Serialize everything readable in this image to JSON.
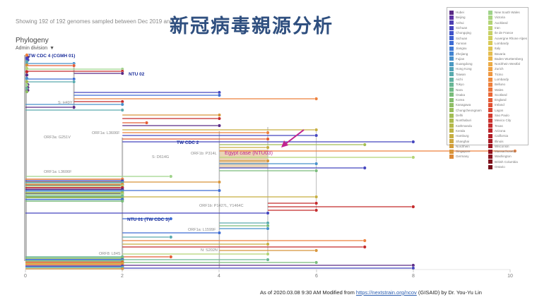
{
  "header": {
    "subtitle": "Showing 192 of 192 genomes sampled between Dec 2019 and",
    "title": "新冠病毒親源分析",
    "section": "Phylogeny",
    "dropdown": "Admin division"
  },
  "axis": {
    "ticks": [
      "0",
      "2",
      "4",
      "6",
      "8",
      "10"
    ],
    "max": 10
  },
  "labels": {
    "tw_cdc4": "TW CDC 4 (CGMH 01)",
    "ntu02": "NTU 02",
    "s_h49y": "S: H49Y",
    "orf1a_l3606f_a": "ORF1a: L3606F",
    "orf3a_g251v": "ORF3a: G251V",
    "tw_cdc2": "TW CDC 2",
    "orf1b_p314l": "ORF1b: P314L",
    "s_d614g": "S: D614G",
    "egypt": "Egypt case (NTU03)",
    "orf1a_l3606f_b": "ORF1a: L3606F",
    "orf1b_p1427l": "ORF1b: P1427L, Y1464C",
    "ntu01": "NTU 01 (TW CDC 3)",
    "orf1a_l1599f": "ORF1a: L1599F",
    "n_s202n": "N: S202N",
    "orf8_l84s": "ORF8: L84S"
  },
  "legend": {
    "col1": [
      {
        "label": "Hubei",
        "color": "#5b2a86"
      },
      {
        "label": "Beijing",
        "color": "#5e34a4"
      },
      {
        "label": "Anhui",
        "color": "#4e3fb2"
      },
      {
        "label": "Sichuan",
        "color": "#4546bf"
      },
      {
        "label": "Chongqing",
        "color": "#3f52c9"
      },
      {
        "label": "Sichuan",
        "color": "#3d5fd0"
      },
      {
        "label": "Yunnan",
        "color": "#3d6cd4"
      },
      {
        "label": "Jiangsu",
        "color": "#3f79d4"
      },
      {
        "label": "Zhejiang",
        "color": "#4385d1"
      },
      {
        "label": "Fujian",
        "color": "#4890cb"
      },
      {
        "label": "Guangdong",
        "color": "#4d9ac3"
      },
      {
        "label": "Hong Kong",
        "color": "#53a3b9"
      },
      {
        "label": "Taiwan",
        "color": "#5aabae"
      },
      {
        "label": "Aichi",
        "color": "#61b1a2"
      },
      {
        "label": "Tokyo",
        "color": "#69b695"
      },
      {
        "label": "Nara",
        "color": "#71ba88"
      },
      {
        "label": "Osaka",
        "color": "#7abc7b"
      },
      {
        "label": "Korea",
        "color": "#84be6f"
      },
      {
        "label": "Kanagawa",
        "color": "#8ebe64"
      },
      {
        "label": "Chungcheongnam",
        "color": "#98be5b"
      },
      {
        "label": "Delhi",
        "color": "#a2bd53"
      },
      {
        "label": "Nonthaburi",
        "color": "#acbb4d"
      },
      {
        "label": "Kathmandu",
        "color": "#b5b848"
      },
      {
        "label": "Kerala",
        "color": "#beb444"
      },
      {
        "label": "Hamburg",
        "color": "#c6ae41"
      },
      {
        "label": "Shanghai",
        "color": "#cda73e"
      },
      {
        "label": "Nordrhein",
        "color": "#d39e3c"
      },
      {
        "label": "Singapore",
        "color": "#d8953a"
      },
      {
        "label": "Germany",
        "color": "#dc8a38"
      }
    ],
    "col2": [
      {
        "label": "New South Wales",
        "color": "#9fd38a"
      },
      {
        "label": "Victoria",
        "color": "#a9d47f"
      },
      {
        "label": "Auckland",
        "color": "#b3d475"
      },
      {
        "label": "Iran",
        "color": "#bdd36c"
      },
      {
        "label": "Ile de France",
        "color": "#c7d164"
      },
      {
        "label": "Auvergne Rhone Alpes",
        "color": "#d0ce5d"
      },
      {
        "label": "Lombardy",
        "color": "#d8ca57"
      },
      {
        "label": "Italy",
        "color": "#dfc452"
      },
      {
        "label": "Bavaria",
        "color": "#e5bd4e"
      },
      {
        "label": "Baden Wurttemberg",
        "color": "#e9b54a"
      },
      {
        "label": "Nordrhein Westfal",
        "color": "#ecac47"
      },
      {
        "label": "Zurich",
        "color": "#eea244"
      },
      {
        "label": "Ticino",
        "color": "#ef9741"
      },
      {
        "label": "Lombardy",
        "color": "#ef8c3f"
      },
      {
        "label": "Belluno",
        "color": "#ee803c"
      },
      {
        "label": "Wales",
        "color": "#ec743a"
      },
      {
        "label": "Scotland",
        "color": "#e96837"
      },
      {
        "label": "England",
        "color": "#e55c35"
      },
      {
        "label": "Ireland",
        "color": "#e05033"
      },
      {
        "label": "Lagos",
        "color": "#da4531"
      },
      {
        "label": "Sao Paulo",
        "color": "#d33b2f"
      },
      {
        "label": "Mexico City",
        "color": "#cc322d"
      },
      {
        "label": "Texas",
        "color": "#c42a2b"
      },
      {
        "label": "Arizona",
        "color": "#bb2429"
      },
      {
        "label": "California",
        "color": "#b21f27"
      },
      {
        "label": "Illinois",
        "color": "#a81b25"
      },
      {
        "label": "Wisconsin",
        "color": "#9e1823"
      },
      {
        "label": "Massachusetts",
        "color": "#941621"
      },
      {
        "label": "Washington",
        "color": "#8a141f"
      },
      {
        "label": "British Columbia",
        "color": "#80121d"
      },
      {
        "label": "Ontario",
        "color": "#76111b"
      }
    ]
  },
  "footer": {
    "prefix": "As of 2020.03.08 9:30 AM  Modified from",
    "link": "https://nextstrain.org/ncov",
    "suffix": "(GISAID)  by Dr. You-Yu Lin"
  }
}
